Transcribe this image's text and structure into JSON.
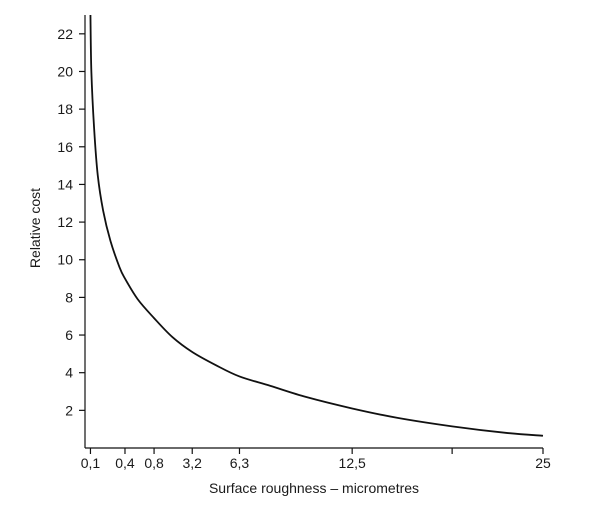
{
  "chart_data": {
    "type": "line",
    "title": "",
    "xlabel": "Surface roughness – micrometres",
    "ylabel": "Relative cost",
    "y_ticks": [
      2,
      4,
      6,
      8,
      10,
      12,
      14,
      16,
      18,
      20,
      22
    ],
    "x_ticks": [
      {
        "value": 0.1,
        "label": "0,1"
      },
      {
        "value": 2.0,
        "label": "0,4"
      },
      {
        "value": 3.6,
        "label": "0,8"
      },
      {
        "value": 5.7,
        "label": "3,2"
      },
      {
        "value": 8.3,
        "label": "6,3"
      },
      {
        "value": 14.5,
        "label": "12,5"
      },
      {
        "value": 20.0,
        "label": ""
      },
      {
        "value": 25,
        "label": "25"
      }
    ],
    "xlim": [
      -0.2,
      25
    ],
    "ylim": [
      0,
      23
    ],
    "grid": false,
    "series": [
      {
        "name": "",
        "x": [
          0.1,
          0.15,
          0.3,
          0.5,
          0.8,
          1.2,
          1.7,
          2.0,
          2.7,
          3.6,
          4.6,
          5.7,
          7.0,
          8.3,
          10.0,
          12.0,
          14.5,
          17.0,
          20.0,
          23.0,
          25.0
        ],
        "y": [
          23.0,
          20.0,
          17.0,
          14.5,
          12.6,
          11.0,
          9.6,
          9.0,
          7.9,
          6.9,
          5.9,
          5.1,
          4.4,
          3.8,
          3.3,
          2.7,
          2.1,
          1.6,
          1.15,
          0.8,
          0.65
        ]
      }
    ]
  }
}
